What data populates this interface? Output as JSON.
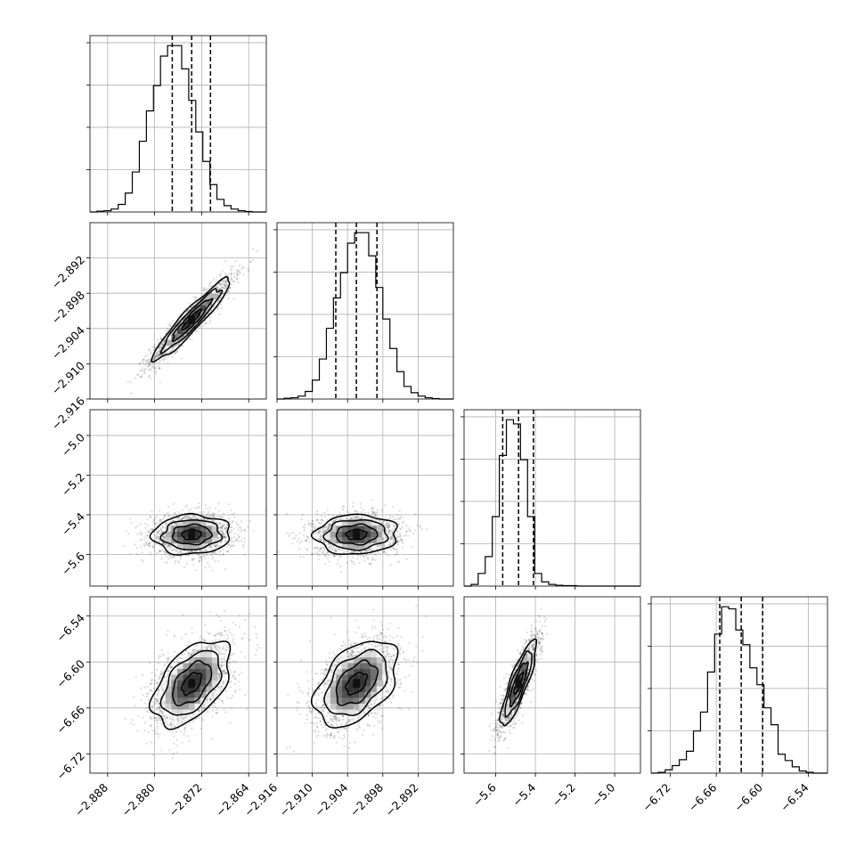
{
  "chart_data": {
    "type": "scatter",
    "variables": [
      {
        "index": 0,
        "range": [
          -2.891,
          -2.861
        ],
        "ticks": [
          -2.888,
          -2.88,
          -2.872,
          -2.864
        ],
        "tick_labels": [
          "−2.888",
          "−2.880",
          "−2.872",
          "−2.864"
        ],
        "median": -2.8737,
        "q16": -2.877,
        "q84": -2.8705
      },
      {
        "index": 1,
        "range": [
          -2.916,
          -2.886
        ],
        "ticks": [
          -2.916,
          -2.91,
          -2.904,
          -2.898,
          -2.892
        ],
        "tick_labels": [
          "−2.916",
          "−2.910",
          "−2.904",
          "−2.898",
          "−2.892"
        ],
        "median": -2.9025,
        "q16": -2.906,
        "q84": -2.899
      },
      {
        "index": 2,
        "range": [
          -5.76,
          -4.87
        ],
        "ticks": [
          -5.6,
          -5.4,
          -5.2,
          -5.0
        ],
        "tick_labels": [
          "−5.6",
          "−5.4",
          "−5.2",
          "−5.0"
        ],
        "median": -5.485,
        "q16": -5.565,
        "q84": -5.41
      },
      {
        "index": 3,
        "range": [
          -6.745,
          -6.515
        ],
        "ticks": [
          -6.72,
          -6.66,
          -6.6,
          -6.54
        ],
        "tick_labels": [
          "−6.72",
          "−6.66",
          "−6.60",
          "−6.54"
        ],
        "median": -6.6275,
        "q16": -6.6555,
        "q84": -6.5995
      }
    ],
    "histograms": [
      {
        "var": 0,
        "counts": [
          0,
          2,
          3,
          7,
          18,
          45,
          95,
          168,
          240,
          300,
          370,
          395,
          395,
          340,
          265,
          190,
          120,
          65,
          30,
          15,
          7,
          3,
          1,
          0,
          0
        ]
      },
      {
        "var": 1,
        "counts": [
          0,
          2,
          3,
          7,
          18,
          45,
          95,
          168,
          240,
          300,
          370,
          395,
          395,
          340,
          265,
          190,
          120,
          65,
          30,
          15,
          7,
          3,
          1,
          0,
          0
        ]
      },
      {
        "var": 2,
        "counts": [
          0,
          4,
          30,
          70,
          165,
          310,
          395,
          385,
          300,
          165,
          30,
          10,
          4,
          2,
          1,
          1,
          0,
          0,
          0,
          0,
          0,
          0,
          0,
          0,
          0
        ]
      },
      {
        "var": 3,
        "counts": [
          0,
          2,
          8,
          18,
          32,
          52,
          100,
          145,
          240,
          330,
          395,
          390,
          340,
          305,
          250,
          210,
          155,
          115,
          45,
          30,
          15,
          5,
          2,
          0,
          0
        ]
      }
    ],
    "pairs": [
      {
        "x_var": 0,
        "y_var": 1,
        "center": [
          -2.8737,
          -2.9025
        ],
        "sd": [
          0.0033,
          0.0035
        ],
        "corr": 0.94
      },
      {
        "x_var": 0,
        "y_var": 2,
        "center": [
          -2.8737,
          -5.5
        ],
        "sd": [
          0.0033,
          0.05
        ],
        "corr": 0.05
      },
      {
        "x_var": 1,
        "y_var": 2,
        "center": [
          -2.9025,
          -5.5
        ],
        "sd": [
          0.0035,
          0.05
        ],
        "corr": 0.05
      },
      {
        "x_var": 0,
        "y_var": 3,
        "center": [
          -2.8737,
          -6.628
        ],
        "sd": [
          0.0033,
          0.028
        ],
        "corr": 0.5
      },
      {
        "x_var": 1,
        "y_var": 3,
        "center": [
          -2.9025,
          -6.628
        ],
        "sd": [
          0.0035,
          0.028
        ],
        "corr": 0.45
      },
      {
        "x_var": 2,
        "y_var": 3,
        "center": [
          -5.485,
          -6.628
        ],
        "sd": [
          0.045,
          0.028
        ],
        "corr": 0.85
      }
    ],
    "grid": true,
    "quantiles": [
      0.16,
      0.5,
      0.84
    ],
    "contour_levels": [
      0.5,
      1.0,
      1.5,
      2.0
    ]
  }
}
